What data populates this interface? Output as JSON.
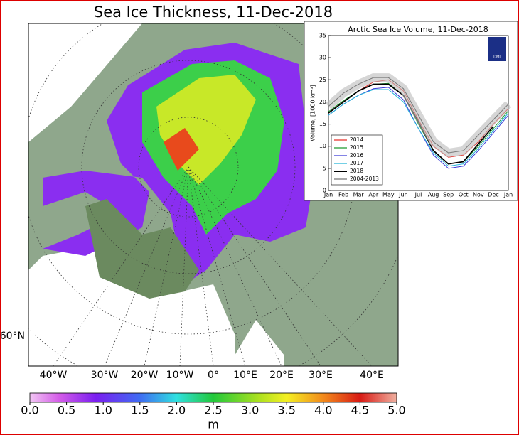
{
  "title": "Sea Ice Thickness, 11-Dec-2018",
  "map": {
    "longitude_labels": [
      "40°W",
      "30°W",
      "20°W",
      "10°W",
      "0°",
      "10°E",
      "20°E",
      "30°E",
      "40°E"
    ],
    "latitude_labels": [
      "60°N"
    ]
  },
  "colorbar": {
    "unit": "m",
    "ticks": [
      {
        "value": 0,
        "label": "0.0"
      },
      {
        "value": 0.5,
        "label": "0.5"
      },
      {
        "value": 1,
        "label": "1.0"
      },
      {
        "value": 1.5,
        "label": "1.5"
      },
      {
        "value": 2,
        "label": "2.0"
      },
      {
        "value": 2.5,
        "label": "2.5"
      },
      {
        "value": 3,
        "label": "3.0"
      },
      {
        "value": 3.5,
        "label": "3.5"
      },
      {
        "value": 4,
        "label": "4.0"
      },
      {
        "value": 4.5,
        "label": "4.5"
      },
      {
        "value": 5,
        "label": "5.0"
      }
    ],
    "range": [
      0,
      5
    ]
  },
  "chart_data": {
    "type": "line",
    "title": "Arctic Sea Ice Volume, 11-Dec-2018",
    "y_label": "Volume, [1000 km³]",
    "logo_text": "DMI",
    "categories": [
      "Jan",
      "Feb",
      "Mar",
      "Apr",
      "May",
      "Jun",
      "Jul",
      "Aug",
      "Sep",
      "Oct",
      "Nov",
      "Dec",
      "Jan"
    ],
    "ylim": [
      0,
      35
    ],
    "yticks": [
      0,
      5,
      10,
      15,
      20,
      25,
      30,
      35
    ],
    "legend": "lower left",
    "series": [
      {
        "name": "2014",
        "color": "#e8302a",
        "values": [
          17.5,
          20,
          22.5,
          24.5,
          25,
          22.5,
          16,
          10,
          7.5,
          8,
          11,
          15,
          18.5
        ]
      },
      {
        "name": "2015",
        "color": "#1f9a2e",
        "values": [
          17.8,
          20.3,
          22.5,
          24,
          24.2,
          21.5,
          15,
          9,
          6,
          6.5,
          10,
          14,
          18
        ]
      },
      {
        "name": "2016",
        "color": "#3a3ad8",
        "values": [
          17,
          19.5,
          21.5,
          23,
          23.3,
          20.5,
          14,
          8,
          5,
          5.5,
          9,
          13,
          17
        ]
      },
      {
        "name": "2017",
        "color": "#22b5d8",
        "values": [
          17,
          19.5,
          21.5,
          22.8,
          22.8,
          20,
          14,
          8.5,
          5.5,
          6,
          9.5,
          13.5,
          17.5
        ]
      },
      {
        "name": "2018",
        "color": "#000000",
        "values": [
          17.5,
          20,
          22.5,
          24,
          24,
          21.5,
          15.5,
          9,
          6,
          6.5,
          10.5,
          14.5,
          null
        ]
      },
      {
        "name": "2004-2013",
        "color": "#777777",
        "values": [
          19,
          22,
          24,
          25.5,
          25.5,
          23,
          17,
          11,
          8.5,
          9,
          12.5,
          16,
          19.5
        ]
      }
    ]
  }
}
